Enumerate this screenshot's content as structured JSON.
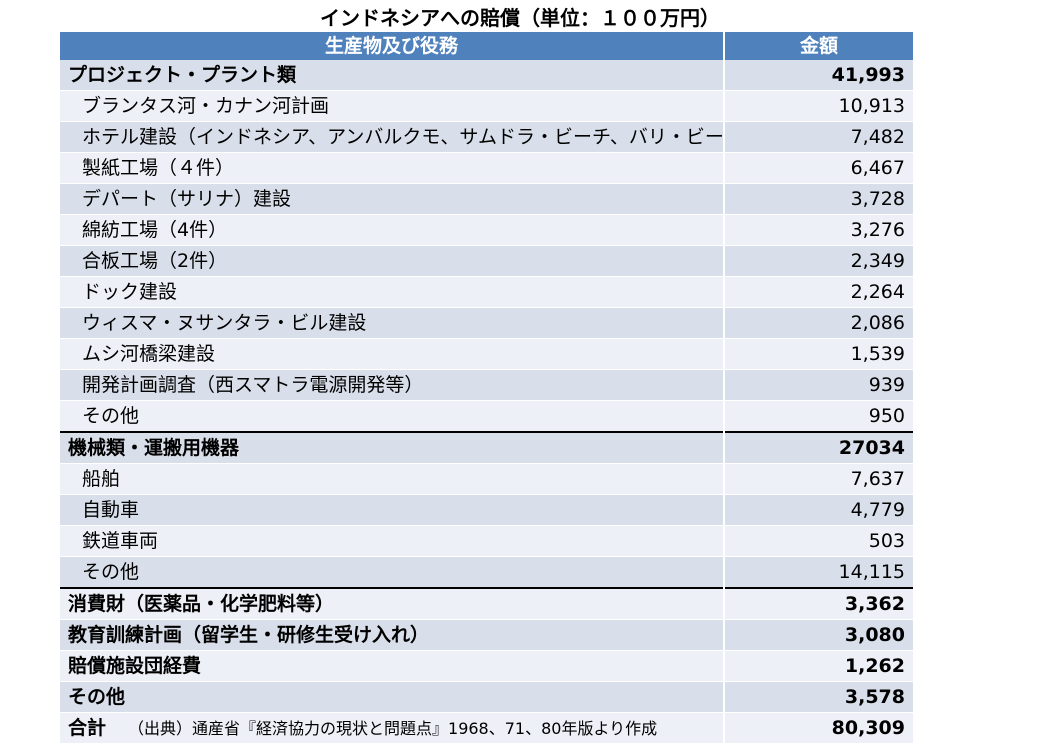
{
  "title": "インドネシアへの賠償（単位：１００万円）",
  "header": {
    "item": "生産物及び役務",
    "amount": "金額"
  },
  "rows": [
    {
      "label": "プロジェクト・プラント類",
      "amount": "41,993"
    },
    {
      "label": "ブランタス河・カナン河計画",
      "amount": "10,913"
    },
    {
      "label": "ホテル建設（インドネシア、アンバルクモ、サムドラ・ビーチ、バリ・ビーチ）",
      "amount": "7,482"
    },
    {
      "label": "製紙工場（４件）",
      "amount": "6,467"
    },
    {
      "label": "デパート（サリナ）建設",
      "amount": "3,728"
    },
    {
      "label": "綿紡工場（4件）",
      "amount": "3,276"
    },
    {
      "label": "合板工場（2件）",
      "amount": "2,349"
    },
    {
      "label": "ドック建設",
      "amount": "2,264"
    },
    {
      "label": "ウィスマ・ヌサンタラ・ビル建設",
      "amount": "2,086"
    },
    {
      "label": "ムシ河橋梁建設",
      "amount": "1,539"
    },
    {
      "label": "開発計画調査（西スマトラ電源開発等）",
      "amount": "939"
    },
    {
      "label": "その他",
      "amount": "950"
    },
    {
      "label": "機械類・運搬用機器",
      "amount": "27034"
    },
    {
      "label": "船舶",
      "amount": "7,637"
    },
    {
      "label": "自動車",
      "amount": "4,779"
    },
    {
      "label": "鉄道車両",
      "amount": "503"
    },
    {
      "label": "その他",
      "amount": "14,115"
    },
    {
      "label": "消費財（医薬品・化学肥料等）",
      "amount": "3,362"
    },
    {
      "label": "教育訓練計画（留学生・研修生受け入れ）",
      "amount": "3,080"
    },
    {
      "label": "賠償施設団経費",
      "amount": "1,262"
    },
    {
      "label": "その他",
      "amount": "3,578"
    }
  ],
  "total": {
    "label": "合計",
    "source": "（出典）通産省『経済協力の現状と問題点』1968、71、80年版より作成",
    "amount": "80,309"
  }
}
